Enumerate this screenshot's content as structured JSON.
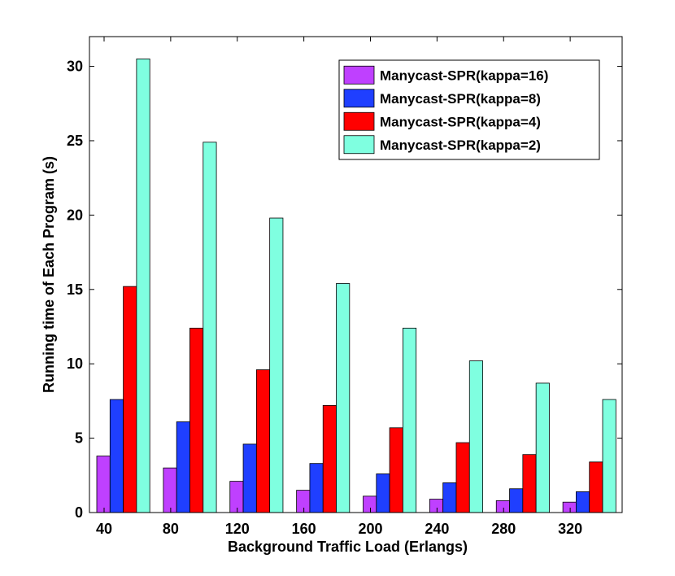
{
  "chart_data": {
    "type": "bar",
    "title": "",
    "xlabel": "Background Traffic Load (Erlangs)",
    "ylabel": "Running time of Each Program (s)",
    "categories": [
      "40",
      "80",
      "120",
      "160",
      "200",
      "240",
      "280",
      "320"
    ],
    "ylim": [
      0,
      32
    ],
    "yticks": [
      0,
      5,
      10,
      15,
      20,
      25,
      30
    ],
    "grid": false,
    "legend_position": "top-right",
    "series": [
      {
        "name": "Manycast-SPR(kappa=16)",
        "color": "#bf40ff",
        "values": [
          3.8,
          3.0,
          2.1,
          1.5,
          1.1,
          0.9,
          0.8,
          0.7
        ]
      },
      {
        "name": "Manycast-SPR(kappa=8)",
        "color": "#1f3fff",
        "values": [
          7.6,
          6.1,
          4.6,
          3.3,
          2.6,
          2.0,
          1.6,
          1.4
        ]
      },
      {
        "name": "Manycast-SPR(kappa=4)",
        "color": "#ff0000",
        "values": [
          15.2,
          12.4,
          9.6,
          7.2,
          5.7,
          4.7,
          3.9,
          3.4
        ]
      },
      {
        "name": "Manycast-SPR(kappa=2)",
        "color": "#7fffe0",
        "values": [
          30.5,
          24.9,
          19.8,
          15.4,
          12.4,
          10.2,
          8.7,
          7.6
        ]
      }
    ]
  }
}
